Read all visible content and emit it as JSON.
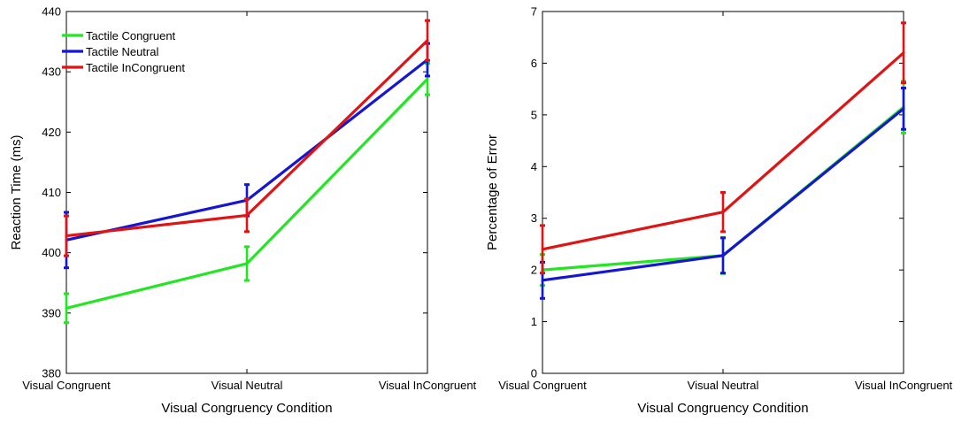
{
  "chart_data": [
    {
      "type": "line",
      "title": "",
      "xlabel": "Visual Congruency Condition",
      "ylabel": "Reaction Time (ms)",
      "categories": [
        "Visual Congruent",
        "Visual Neutral",
        "Visual InCongruent"
      ],
      "ylim": [
        380,
        440
      ],
      "yticks": [
        380,
        390,
        400,
        410,
        420,
        430,
        440
      ],
      "legend_position": "top-left",
      "series": [
        {
          "name": "Tactile Congruent",
          "color": "#22e622",
          "values": [
            390.8,
            398.2,
            428.8
          ],
          "errors": [
            2.4,
            2.8,
            2.6
          ]
        },
        {
          "name": "Tactile Neutral",
          "color": "#1515d4",
          "values": [
            402.1,
            408.7,
            432.0
          ],
          "errors": [
            4.6,
            2.6,
            2.7
          ]
        },
        {
          "name": "Tactile InCongruent",
          "color": "#e01414",
          "values": [
            402.8,
            406.2,
            435.2
          ],
          "errors": [
            3.3,
            2.7,
            3.3
          ]
        }
      ]
    },
    {
      "type": "line",
      "title": "",
      "xlabel": "Visual Congruency Condition",
      "ylabel": "Percentage of Error",
      "categories": [
        "Visual Congruent",
        "Visual Neutral",
        "Visual InCongruent"
      ],
      "ylim": [
        0,
        7
      ],
      "yticks": [
        0,
        1,
        2,
        3,
        4,
        5,
        6,
        7
      ],
      "series": [
        {
          "name": "Tactile Congruent",
          "color": "#22e622",
          "values": [
            2.0,
            2.28,
            5.15
          ],
          "errors": [
            0.3,
            0.35,
            0.5
          ]
        },
        {
          "name": "Tactile Neutral",
          "color": "#1515d4",
          "values": [
            1.8,
            2.28,
            5.12
          ],
          "errors": [
            0.35,
            0.34,
            0.4
          ]
        },
        {
          "name": "Tactile InCongruent",
          "color": "#e01414",
          "values": [
            2.4,
            3.12,
            6.2
          ],
          "errors": [
            0.46,
            0.38,
            0.58
          ]
        }
      ]
    }
  ]
}
